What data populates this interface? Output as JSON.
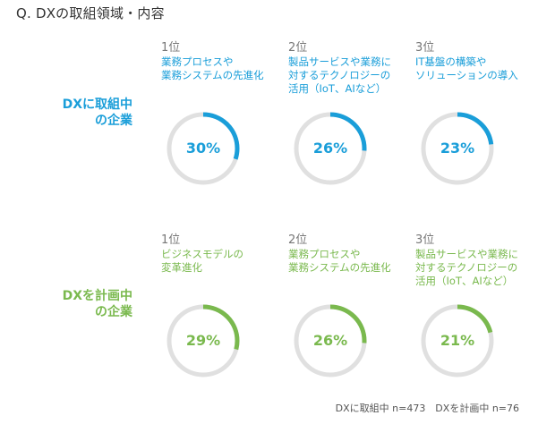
{
  "title": "Q. DXの取組領域・内容",
  "colors": {
    "blue": "#1a9ed9",
    "green": "#7ab94e",
    "track": "#e0e0e0"
  },
  "chart_data": [
    {
      "type": "donut",
      "group": "DXに取組中の企業",
      "group_lines": [
        "DXに取組中",
        "の企業"
      ],
      "color": "#1a9ed9",
      "items": [
        {
          "rank": "1位",
          "label_lines": [
            "業務プロセスや",
            "業務システムの先進化"
          ],
          "value": 30,
          "display": "30%"
        },
        {
          "rank": "2位",
          "label_lines": [
            "製品サービスや業務に",
            "対するテクノロジーの",
            "活用（IoT、AIなど）"
          ],
          "value": 26,
          "display": "26%"
        },
        {
          "rank": "3位",
          "label_lines": [
            "IT基盤の構築や",
            "ソリューションの導入"
          ],
          "value": 23,
          "display": "23%"
        }
      ]
    },
    {
      "type": "donut",
      "group": "DXを計画中の企業",
      "group_lines": [
        "DXを計画中",
        "の企業"
      ],
      "color": "#7ab94e",
      "items": [
        {
          "rank": "1位",
          "label_lines": [
            "ビジネスモデルの",
            "変革進化"
          ],
          "value": 29,
          "display": "29%"
        },
        {
          "rank": "2位",
          "label_lines": [
            "業務プロセスや",
            "業務システムの先進化"
          ],
          "value": 26,
          "display": "26%"
        },
        {
          "rank": "3位",
          "label_lines": [
            "製品サービスや業務に",
            "対するテクノロジーの",
            "活用（IoT、AIなど）"
          ],
          "value": 21,
          "display": "21%"
        }
      ]
    }
  ],
  "footnote": "DXに取組中 n=473　DXを計画中 n=76"
}
